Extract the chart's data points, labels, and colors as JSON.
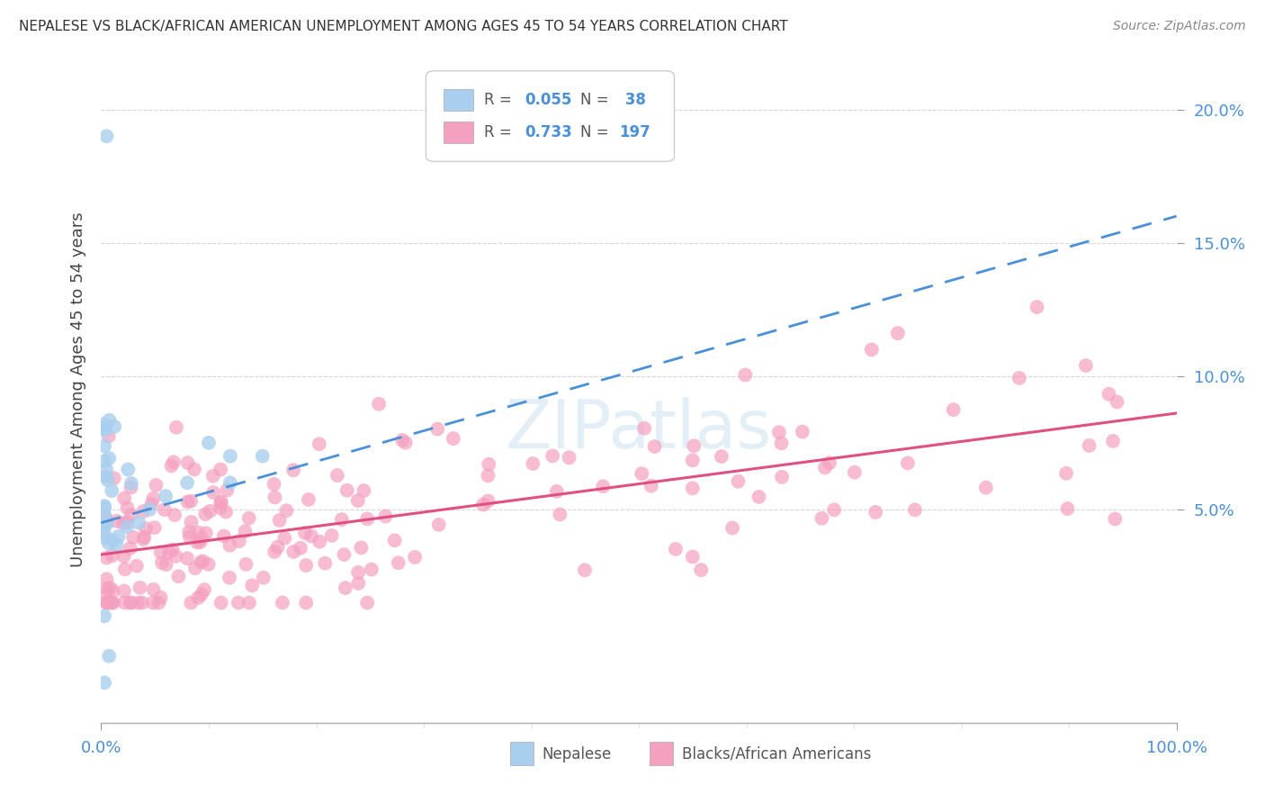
{
  "title": "NEPALESE VS BLACK/AFRICAN AMERICAN UNEMPLOYMENT AMONG AGES 45 TO 54 YEARS CORRELATION CHART",
  "source": "Source: ZipAtlas.com",
  "ylabel": "Unemployment Among Ages 45 to 54 years",
  "xlim": [
    0,
    100
  ],
  "ylim": [
    -3,
    22
  ],
  "yticks": [
    5,
    10,
    15,
    20
  ],
  "ytick_labels": [
    "5.0%",
    "10.0%",
    "15.0%",
    "20.0%"
  ],
  "xtick_labels": [
    "0.0%",
    "100.0%"
  ],
  "nepalese_color": "#aacfee",
  "black_color": "#f4a0c0",
  "nepalese_line_color": "#4a90d9",
  "black_line_color": "#e05080",
  "tick_color": "#4a90d9",
  "watermark_color": "#c8dff0",
  "background_color": "#ffffff",
  "grid_color": "#cccccc",
  "legend_box_color": "#cccccc",
  "title_color": "#333333",
  "source_color": "#888888",
  "ylabel_color": "#444444"
}
